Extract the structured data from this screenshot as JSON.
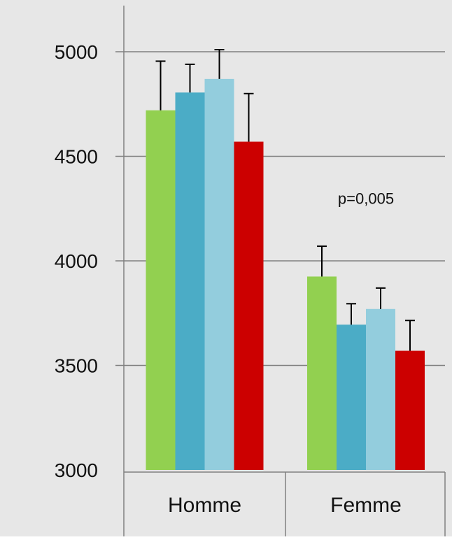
{
  "chart_data": {
    "type": "bar",
    "categories": [
      "Homme",
      "Femme"
    ],
    "series": [
      {
        "color": "#92d050",
        "values": [
          4720,
          3925
        ],
        "errors": [
          235,
          145
        ]
      },
      {
        "color": "#4bacc6",
        "values": [
          4805,
          3695
        ],
        "errors": [
          135,
          100
        ]
      },
      {
        "color": "#93cddd",
        "values": [
          4870,
          3770
        ],
        "errors": [
          140,
          100
        ]
      },
      {
        "color": "#cc0000",
        "values": [
          4570,
          3570
        ],
        "errors": [
          230,
          145
        ]
      }
    ],
    "ylim": [
      3000,
      5000
    ],
    "yticks": [
      "3000",
      "3500",
      "4000",
      "4500",
      "5000"
    ],
    "grid": true,
    "annotations": [
      {
        "text": "p=0,005",
        "category": "Femme",
        "value": 4300
      }
    ],
    "plot_background": "#e7e7e7"
  }
}
